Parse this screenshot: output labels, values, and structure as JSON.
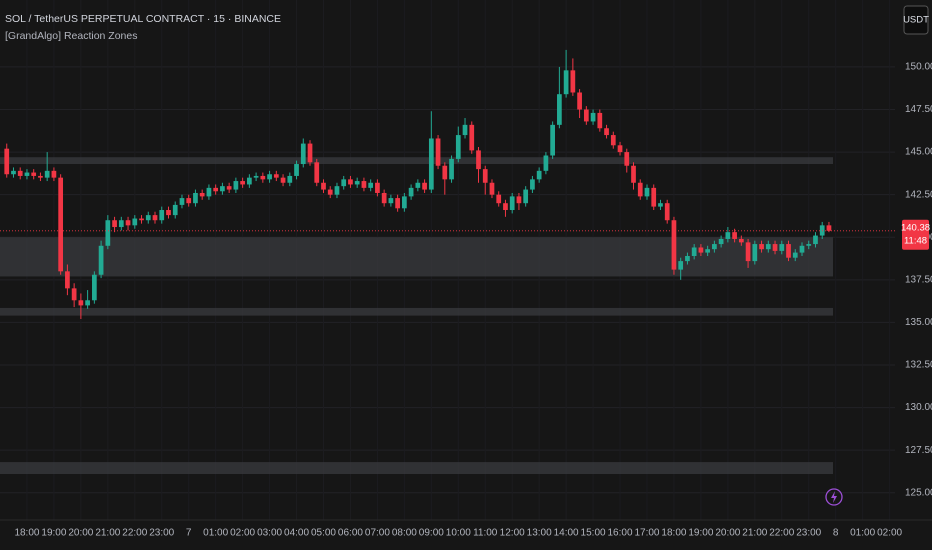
{
  "chart_data": {
    "type": "candlestick",
    "title": "SOL / TetherUS PERPETUAL CONTRACT · 15 · BINANCE",
    "indicator": "[GrandAlgo] Reaction Zones",
    "currency": "USDT",
    "countdown": "11:48",
    "up_color": "#22ab94",
    "down_color": "#f23645",
    "zone_color": "#3a3b3f",
    "grid": true,
    "ylim": [
      123.4,
      153.93
    ],
    "yticks": [
      {
        "value": 125,
        "label": "125.00"
      },
      {
        "value": 127.5,
        "label": "127.50"
      },
      {
        "value": 130,
        "label": "130.00"
      },
      {
        "value": 132.5,
        "label": "132.50"
      },
      {
        "value": 135,
        "label": "135.00"
      },
      {
        "value": 137.5,
        "label": "137.50"
      },
      {
        "value": 140,
        "label": "140.00"
      },
      {
        "value": 142.5,
        "label": "142.50"
      },
      {
        "value": 145,
        "label": "145.00"
      },
      {
        "value": 147.5,
        "label": "147.50"
      },
      {
        "value": 150,
        "label": "150.00"
      }
    ],
    "xlim": [
      -1,
      131.8
    ],
    "xticks": [
      {
        "value": 3,
        "label": "18:00"
      },
      {
        "value": 7,
        "label": "19:00"
      },
      {
        "value": 11,
        "label": "20:00"
      },
      {
        "value": 15,
        "label": "21:00"
      },
      {
        "value": 19,
        "label": "22:00"
      },
      {
        "value": 23,
        "label": "23:00"
      },
      {
        "value": 27,
        "label": "7"
      },
      {
        "value": 31,
        "label": "01:00"
      },
      {
        "value": 35,
        "label": "02:00"
      },
      {
        "value": 39,
        "label": "03:00"
      },
      {
        "value": 43,
        "label": "04:00"
      },
      {
        "value": 47,
        "label": "05:00"
      },
      {
        "value": 51,
        "label": "06:00"
      },
      {
        "value": 55,
        "label": "07:00"
      },
      {
        "value": 59,
        "label": "08:00"
      },
      {
        "value": 63,
        "label": "09:00"
      },
      {
        "value": 67,
        "label": "10:00"
      },
      {
        "value": 71,
        "label": "11:00"
      },
      {
        "value": 75,
        "label": "12:00"
      },
      {
        "value": 79,
        "label": "13:00"
      },
      {
        "value": 83,
        "label": "14:00"
      },
      {
        "value": 87,
        "label": "15:00"
      },
      {
        "value": 91,
        "label": "16:00"
      },
      {
        "value": 95,
        "label": "17:00"
      },
      {
        "value": 99,
        "label": "18:00"
      },
      {
        "value": 103,
        "label": "19:00"
      },
      {
        "value": 107,
        "label": "20:00"
      },
      {
        "value": 111,
        "label": "21:00"
      },
      {
        "value": 115,
        "label": "22:00"
      },
      {
        "value": 119,
        "label": "23:00"
      },
      {
        "value": 123,
        "label": "8"
      },
      {
        "value": 127,
        "label": "01:00"
      },
      {
        "value": 131,
        "label": "02:00"
      }
    ],
    "zones": [
      [
        144.3,
        144.7
      ],
      [
        137.7,
        140.0
      ],
      [
        135.4,
        135.85
      ],
      [
        126.1,
        126.8
      ]
    ],
    "candles": [
      [
        145.2,
        145.5,
        143.5,
        143.7
      ],
      [
        143.7,
        144.1,
        143.5,
        143.9
      ],
      [
        143.9,
        144.1,
        143.4,
        143.6
      ],
      [
        143.6,
        144.0,
        143.4,
        143.8
      ],
      [
        143.8,
        144.0,
        143.4,
        143.6
      ],
      [
        143.6,
        143.8,
        143.3,
        143.5
      ],
      [
        143.5,
        145.0,
        143.3,
        143.9
      ],
      [
        143.9,
        144.1,
        143.3,
        143.5
      ],
      [
        143.5,
        143.7,
        137.8,
        138.0
      ],
      [
        138.0,
        138.4,
        136.6,
        137.0
      ],
      [
        137.0,
        137.3,
        135.9,
        136.3
      ],
      [
        136.3,
        136.7,
        135.2,
        136.0
      ],
      [
        136.0,
        136.9,
        135.8,
        136.3
      ],
      [
        136.3,
        138.0,
        136.1,
        137.8
      ],
      [
        137.8,
        139.8,
        137.6,
        139.5
      ],
      [
        139.5,
        141.3,
        139.3,
        141.0
      ],
      [
        141.0,
        141.2,
        140.3,
        140.6
      ],
      [
        140.6,
        141.2,
        140.4,
        141.0
      ],
      [
        141.0,
        141.2,
        140.4,
        140.7
      ],
      [
        140.7,
        141.3,
        140.5,
        141.1
      ],
      [
        141.1,
        141.3,
        140.8,
        141.0
      ],
      [
        141.0,
        141.5,
        140.8,
        141.3
      ],
      [
        141.3,
        141.5,
        140.8,
        141.0
      ],
      [
        141.0,
        141.8,
        140.8,
        141.6
      ],
      [
        141.6,
        141.8,
        141.1,
        141.3
      ],
      [
        141.3,
        142.1,
        141.1,
        141.9
      ],
      [
        141.9,
        142.5,
        141.7,
        142.3
      ],
      [
        142.3,
        142.5,
        141.8,
        142.0
      ],
      [
        142.0,
        142.8,
        141.8,
        142.6
      ],
      [
        142.6,
        142.8,
        142.2,
        142.4
      ],
      [
        142.4,
        143.1,
        142.2,
        142.9
      ],
      [
        142.9,
        143.1,
        142.5,
        142.7
      ],
      [
        142.7,
        143.2,
        142.5,
        143.0
      ],
      [
        143.0,
        143.2,
        142.6,
        142.8
      ],
      [
        142.8,
        143.5,
        142.6,
        143.3
      ],
      [
        143.3,
        143.5,
        142.9,
        143.1
      ],
      [
        143.1,
        143.7,
        142.9,
        143.5
      ],
      [
        143.5,
        143.8,
        143.3,
        143.6
      ],
      [
        143.6,
        143.8,
        143.2,
        143.4
      ],
      [
        143.4,
        143.9,
        143.2,
        143.7
      ],
      [
        143.7,
        143.9,
        143.3,
        143.5
      ],
      [
        143.5,
        143.7,
        143.0,
        143.2
      ],
      [
        143.2,
        143.8,
        143.0,
        143.6
      ],
      [
        143.6,
        144.5,
        143.4,
        144.3
      ],
      [
        144.3,
        145.8,
        144.1,
        145.5
      ],
      [
        145.5,
        145.7,
        144.2,
        144.4
      ],
      [
        144.4,
        144.6,
        143.0,
        143.2
      ],
      [
        143.2,
        143.4,
        142.6,
        142.8
      ],
      [
        142.8,
        143.0,
        142.3,
        142.5
      ],
      [
        142.5,
        143.2,
        142.3,
        143.0
      ],
      [
        143.0,
        143.6,
        142.8,
        143.4
      ],
      [
        143.4,
        143.6,
        142.9,
        143.1
      ],
      [
        143.1,
        143.5,
        142.9,
        143.3
      ],
      [
        143.3,
        143.5,
        142.7,
        142.9
      ],
      [
        142.9,
        143.4,
        142.7,
        143.2
      ],
      [
        143.2,
        143.4,
        142.4,
        142.6
      ],
      [
        142.6,
        142.8,
        141.8,
        142.0
      ],
      [
        142.0,
        142.5,
        141.8,
        142.3
      ],
      [
        142.3,
        142.5,
        141.5,
        141.7
      ],
      [
        141.7,
        142.6,
        141.5,
        142.4
      ],
      [
        142.4,
        143.1,
        142.2,
        142.9
      ],
      [
        142.9,
        143.4,
        142.7,
        143.2
      ],
      [
        143.2,
        143.4,
        142.6,
        142.8
      ],
      [
        142.8,
        147.4,
        142.6,
        145.8
      ],
      [
        145.8,
        146.0,
        144.0,
        144.2
      ],
      [
        144.2,
        144.4,
        142.5,
        143.4
      ],
      [
        143.4,
        144.8,
        143.2,
        144.6
      ],
      [
        144.6,
        146.5,
        144.4,
        146.0
      ],
      [
        146.0,
        147.0,
        145.8,
        146.6
      ],
      [
        146.6,
        146.8,
        144.9,
        145.1
      ],
      [
        145.1,
        145.3,
        143.2,
        144.0
      ],
      [
        144.0,
        144.2,
        142.5,
        143.2
      ],
      [
        143.2,
        143.4,
        142.3,
        142.5
      ],
      [
        142.5,
        142.7,
        141.8,
        142.0
      ],
      [
        142.0,
        142.2,
        141.2,
        141.6
      ],
      [
        141.6,
        142.6,
        141.4,
        142.4
      ],
      [
        142.4,
        142.6,
        141.6,
        142.0
      ],
      [
        142.0,
        143.0,
        141.8,
        142.8
      ],
      [
        142.8,
        143.6,
        142.6,
        143.4
      ],
      [
        143.4,
        144.1,
        143.2,
        143.9
      ],
      [
        143.9,
        145.0,
        143.7,
        144.8
      ],
      [
        144.8,
        146.8,
        144.6,
        146.6
      ],
      [
        146.6,
        150.0,
        146.4,
        148.4
      ],
      [
        148.4,
        151.0,
        148.2,
        149.8
      ],
      [
        149.8,
        150.5,
        148.3,
        148.5
      ],
      [
        148.5,
        148.7,
        147.0,
        147.5
      ],
      [
        147.5,
        147.7,
        146.6,
        146.8
      ],
      [
        146.8,
        147.5,
        146.6,
        147.3
      ],
      [
        147.3,
        147.5,
        146.2,
        146.4
      ],
      [
        146.4,
        146.6,
        145.8,
        146.0
      ],
      [
        146.0,
        146.2,
        145.2,
        145.4
      ],
      [
        145.4,
        145.6,
        144.8,
        145.0
      ],
      [
        145.0,
        145.2,
        143.8,
        144.2
      ],
      [
        144.2,
        144.4,
        142.8,
        143.2
      ],
      [
        143.2,
        143.4,
        142.2,
        142.4
      ],
      [
        142.4,
        143.1,
        142.2,
        142.9
      ],
      [
        142.9,
        143.1,
        141.6,
        141.8
      ],
      [
        141.8,
        142.2,
        141.6,
        142.0
      ],
      [
        142.0,
        142.2,
        140.8,
        141.0
      ],
      [
        141.0,
        141.2,
        137.8,
        138.1
      ],
      [
        138.1,
        138.8,
        137.5,
        138.6
      ],
      [
        138.6,
        139.1,
        138.4,
        138.9
      ],
      [
        138.9,
        139.6,
        138.7,
        139.4
      ],
      [
        139.4,
        139.6,
        138.9,
        139.1
      ],
      [
        139.1,
        139.5,
        138.9,
        139.3
      ],
      [
        139.3,
        139.8,
        139.1,
        139.6
      ],
      [
        139.6,
        140.1,
        139.4,
        139.9
      ],
      [
        139.9,
        140.6,
        139.7,
        140.3
      ],
      [
        140.3,
        140.5,
        139.7,
        139.9
      ],
      [
        139.9,
        140.1,
        139.5,
        139.7
      ],
      [
        139.7,
        139.9,
        138.2,
        138.6
      ],
      [
        138.6,
        139.8,
        138.4,
        139.6
      ],
      [
        139.6,
        139.8,
        139.1,
        139.3
      ],
      [
        139.3,
        139.8,
        139.1,
        139.6
      ],
      [
        139.6,
        139.8,
        139.0,
        139.2
      ],
      [
        139.2,
        139.8,
        139.0,
        139.6
      ],
      [
        139.6,
        139.8,
        138.6,
        138.8
      ],
      [
        138.8,
        139.3,
        138.6,
        139.1
      ],
      [
        139.1,
        139.7,
        138.9,
        139.5
      ],
      [
        139.5,
        139.8,
        139.3,
        139.6
      ],
      [
        139.6,
        140.3,
        139.4,
        140.1
      ],
      [
        140.1,
        140.9,
        139.9,
        140.7
      ],
      [
        140.7,
        140.9,
        140.3,
        140.38
      ]
    ]
  }
}
